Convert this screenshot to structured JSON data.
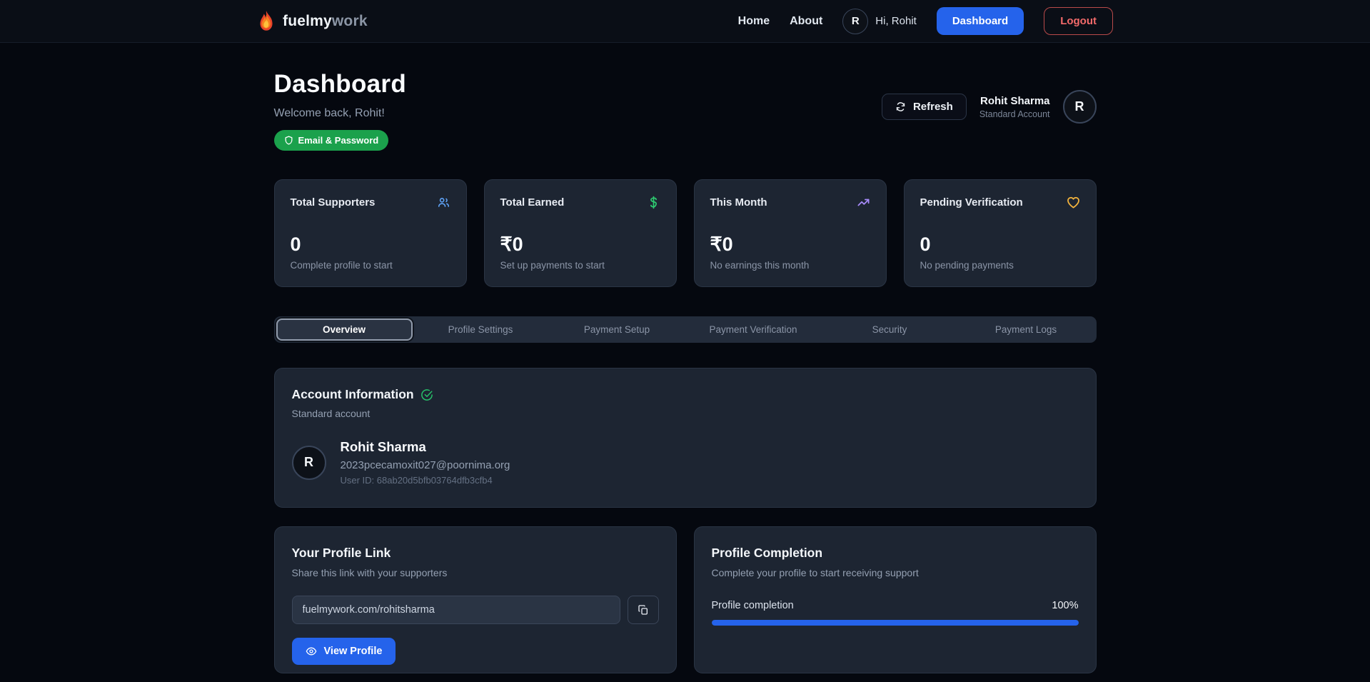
{
  "navbar": {
    "brand_primary": "fuelmy",
    "brand_secondary": "work",
    "links": [
      {
        "label": "Home"
      },
      {
        "label": "About"
      }
    ],
    "avatar_initial": "R",
    "greeting": "Hi, Rohit",
    "dashboard_button": "Dashboard",
    "logout_button": "Logout"
  },
  "header": {
    "title": "Dashboard",
    "welcome": "Welcome back, Rohit!",
    "auth_badge": "Email & Password",
    "refresh_button": "Refresh",
    "user_name": "Rohit Sharma",
    "user_type": "Standard Account",
    "avatar_initial": "R"
  },
  "stats": [
    {
      "label": "Total Supporters",
      "icon": "users-icon",
      "icon_color": "#60a5fa",
      "value": "0",
      "caption": "Complete profile to start"
    },
    {
      "label": "Total Earned",
      "icon": "dollar-icon",
      "icon_color": "#2ecc71",
      "value": "₹0",
      "caption": "Set up payments to start"
    },
    {
      "label": "This Month",
      "icon": "trending-up-icon",
      "icon_color": "#a78bfa",
      "value": "₹0",
      "caption": "No earnings this month"
    },
    {
      "label": "Pending Verification",
      "icon": "heart-icon",
      "icon_color": "#f5b53d",
      "value": "0",
      "caption": "No pending payments"
    }
  ],
  "tabs": [
    {
      "label": "Overview",
      "active": true
    },
    {
      "label": "Profile Settings",
      "active": false
    },
    {
      "label": "Payment Setup",
      "active": false
    },
    {
      "label": "Payment Verification",
      "active": false
    },
    {
      "label": "Security",
      "active": false
    },
    {
      "label": "Payment Logs",
      "active": false
    }
  ],
  "account_info": {
    "title": "Account Information",
    "subtitle": "Standard account",
    "avatar_initial": "R",
    "name": "Rohit Sharma",
    "email": "2023pcecamoxit027@poornima.org",
    "user_id": "User ID: 68ab20d5bfb03764dfb3cfb4"
  },
  "profile_link": {
    "title": "Your Profile Link",
    "subtitle": "Share this link with your supporters",
    "link_value": "fuelmywork.com/rohitsharma",
    "view_profile_button": "View Profile"
  },
  "profile_completion": {
    "title": "Profile Completion",
    "subtitle": "Complete your profile to start receiving support",
    "label": "Profile completion",
    "percent_text": "100%",
    "percent_value": 100
  },
  "colors": {
    "accent_blue": "#2563eb",
    "badge_green": "#1ba14c",
    "logout_red": "#f36a6a",
    "card_bg": "#1d2532",
    "page_bg": "#05080f"
  }
}
